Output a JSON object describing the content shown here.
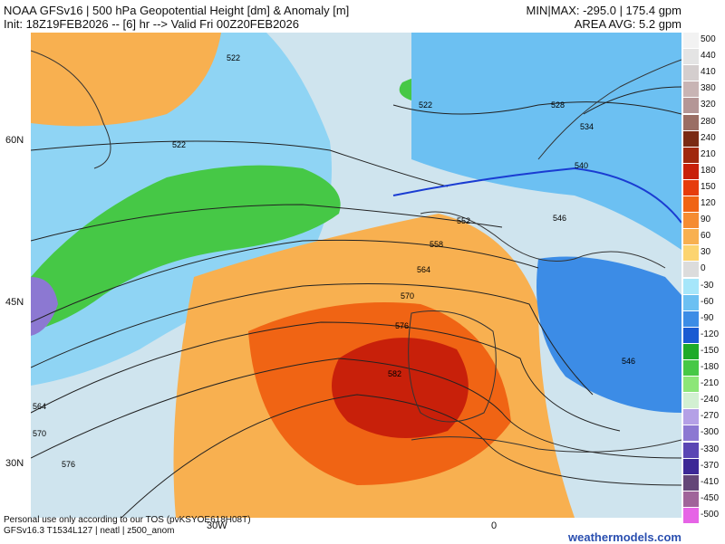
{
  "header": {
    "title": "NOAA GFSv16 | 500 hPa Geopotential Height [dm] & Anomaly [m]",
    "init_line": "Init: 18Z19FEB2026 -- [6] hr --> Valid Fri 00Z20FEB2026",
    "minmax": "MIN|MAX: -295.0 | 175.4 gpm",
    "area_avg": "AREA AVG: 5.2 gpm"
  },
  "map": {
    "lat_labels": [
      "60N",
      "45N",
      "30N"
    ],
    "lon_labels": [
      "30W",
      "0"
    ],
    "contour_labels": [
      "522",
      "522",
      "522",
      "528",
      "534",
      "540",
      "546",
      "552",
      "558",
      "564",
      "570",
      "576",
      "582",
      "546",
      "564",
      "570",
      "576"
    ]
  },
  "legend": {
    "items": [
      {
        "label": "500",
        "color": "#f2f2f2"
      },
      {
        "label": "440",
        "color": "#e4e4e4"
      },
      {
        "label": "410",
        "color": "#d4cece"
      },
      {
        "label": "380",
        "color": "#c8b4b4"
      },
      {
        "label": "320",
        "color": "#b49696"
      },
      {
        "label": "280",
        "color": "#9a6e64"
      },
      {
        "label": "240",
        "color": "#7a2a14"
      },
      {
        "label": "210",
        "color": "#a0280e"
      },
      {
        "label": "180",
        "color": "#c8200a"
      },
      {
        "label": "150",
        "color": "#e63c0c"
      },
      {
        "label": "120",
        "color": "#f06414"
      },
      {
        "label": "90",
        "color": "#f58c32"
      },
      {
        "label": "60",
        "color": "#f8b050"
      },
      {
        "label": "30",
        "color": "#fcd470"
      },
      {
        "label": "0",
        "color": "#dcdcdc"
      },
      {
        "label": "-30",
        "color": "#a6e6fa"
      },
      {
        "label": "-60",
        "color": "#6cc0f2"
      },
      {
        "label": "-90",
        "color": "#3c8ce6"
      },
      {
        "label": "-120",
        "color": "#1a5ad2"
      },
      {
        "label": "-150",
        "color": "#1eaa28"
      },
      {
        "label": "-180",
        "color": "#46c846"
      },
      {
        "label": "-210",
        "color": "#8ce678"
      },
      {
        "label": "-240",
        "color": "#d2f0d2"
      },
      {
        "label": "-270",
        "color": "#b4a0e6"
      },
      {
        "label": "-300",
        "color": "#8c78d2"
      },
      {
        "label": "-330",
        "color": "#5a46b4"
      },
      {
        "label": "-370",
        "color": "#3c2896"
      },
      {
        "label": "-410",
        "color": "#644678"
      },
      {
        "label": "-450",
        "color": "#a0649a"
      },
      {
        "label": "-500",
        "color": "#e664e6"
      }
    ]
  },
  "footer": {
    "notice": "Personal use only according to our TOS (pvKSYOE618H08T)",
    "model_line": "GFSv16.3 T1534L127 | neatl | z500_anom",
    "brand": "weathermodels.com"
  }
}
